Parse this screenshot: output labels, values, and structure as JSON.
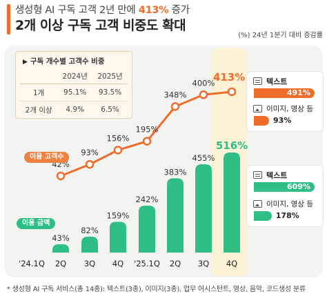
{
  "header": {
    "title_line1_prefix": "생성형 AI 구독 고객 2년 만에 ",
    "title_line1_highlight": "413%",
    "title_line1_suffix": " 증가",
    "title_line2": "2개 이상 구독 고객 비중도 확대",
    "unit_note": "(%) 24년 1분기 대비 증감률"
  },
  "table": {
    "title": "구독 개수별 고객수 비중",
    "columns": [
      "",
      "2024년",
      "2025년"
    ],
    "rows": [
      [
        "1개",
        "95.1%",
        "93.5%"
      ],
      [
        "2개 이상",
        "4.9%",
        "6.5%"
      ]
    ]
  },
  "series_tags": {
    "users": "이용 고객수",
    "amount": "이용 금액"
  },
  "legend_users": {
    "items": [
      {
        "label": "텍스트",
        "value": "491%",
        "value_num": 491,
        "icon": "document-icon"
      },
      {
        "label": "이미지, 영상 등",
        "value": "93%",
        "value_num": 93,
        "icon": "image-icon"
      }
    ]
  },
  "legend_amount": {
    "items": [
      {
        "label": "텍스트",
        "value": "609%",
        "value_num": 609,
        "icon": "document-icon"
      },
      {
        "label": "이미지, 영상 등",
        "value": "178%",
        "value_num": 178,
        "icon": "image-icon"
      }
    ]
  },
  "footnote": "* 생성형 AI 구독 서비스(총 14종): 텍스트(3종), 이미지(3종), 업무 어시스턴트, 영상, 음악, 코드생성 분류",
  "colors": {
    "orange": "#ef6c2a",
    "green": "#2fbf86",
    "highlight": "#fbf2d6"
  },
  "chart_data": {
    "type": "bar",
    "categories": [
      "'24.1Q",
      "2Q",
      "3Q",
      "4Q",
      "'25.1Q",
      "2Q",
      "3Q",
      "4Q"
    ],
    "series": [
      {
        "name": "이용 고객수",
        "type": "line",
        "values": [
          null,
          42,
          93,
          156,
          195,
          348,
          400,
          413
        ],
        "labels": [
          "",
          "42%",
          "93%",
          "156%",
          "195%",
          "348%",
          "400%",
          "413%"
        ]
      },
      {
        "name": "이용 금액",
        "type": "bar",
        "values": [
          null,
          43,
          82,
          159,
          242,
          383,
          455,
          516
        ],
        "labels": [
          "",
          "43%",
          "82%",
          "159%",
          "242%",
          "383%",
          "455%",
          "516%"
        ]
      }
    ],
    "highlight_category_index": 7
  }
}
